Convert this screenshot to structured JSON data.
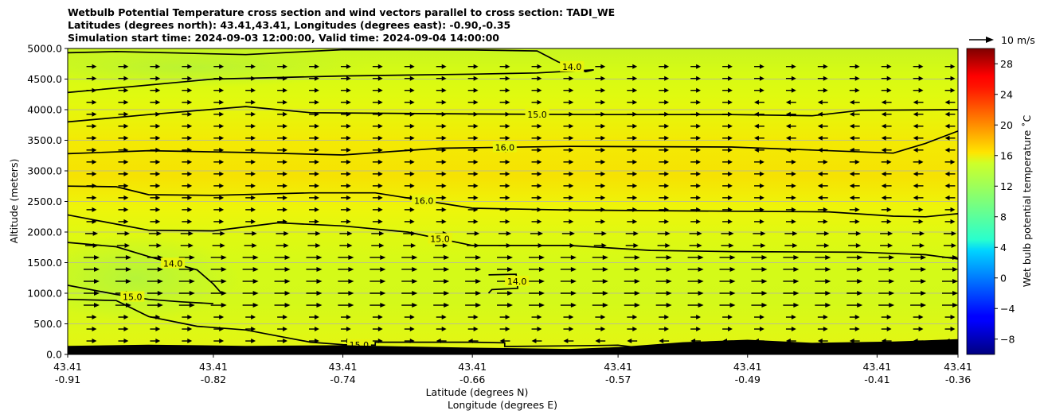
{
  "chart_data": {
    "type": "heatmap",
    "title_lines": [
      "Wetbulb Potential Temperature cross section and wind vectors parallel to cross section: TADI_WE",
      "Latitudes (degrees north): 43.41,43.41, Longitudes (degrees east): -0.90,-0.35",
      "Simulation start time: 2024-09-03 12:00:00, Valid time: 2024-09-04 14:00:00"
    ],
    "ylabel": "Altitude (meters)",
    "xlabel_lat": "Latitude (degrees N)",
    "xlabel_lon": "Longitude (degrees E)",
    "ylim": [
      0,
      5000
    ],
    "y_ticks": [
      "0.0",
      "500.0",
      "1000.0",
      "1500.0",
      "2000.0",
      "2500.0",
      "3000.0",
      "3500.0",
      "4000.0",
      "4500.0",
      "5000.0"
    ],
    "y_tick_values": [
      0,
      500,
      1000,
      1500,
      2000,
      2500,
      3000,
      3500,
      4000,
      4500,
      5000
    ],
    "xlim": [
      -0.91,
      -0.36
    ],
    "x_tick_lon_values": [
      -0.91,
      -0.82,
      -0.74,
      -0.66,
      -0.57,
      -0.49,
      -0.41,
      -0.36
    ],
    "x_tick_lat": [
      "43.41",
      "43.41",
      "43.41",
      "43.41",
      "43.41",
      "43.41",
      "43.41",
      "43.41"
    ],
    "x_tick_lon": [
      "-0.91",
      "-0.82",
      "-0.74",
      "-0.66",
      "-0.57",
      "-0.49",
      "-0.41",
      "-0.36"
    ],
    "grid": "horizontal",
    "colorbar": {
      "label": "Wet bulb potential temperature ˚C",
      "range": [
        -10,
        30
      ],
      "ticks": [
        "28",
        "24",
        "20",
        "16",
        "12",
        "8",
        "4",
        "0",
        "−4",
        "−8"
      ],
      "tick_values": [
        28,
        24,
        20,
        16,
        12,
        8,
        4,
        0,
        -4,
        -8
      ],
      "colormap": "jet"
    },
    "quiver_key": "10 m/s",
    "contours": [
      {
        "level": 14.0,
        "label": "14.0",
        "points": [
          [
            -0.91,
            4930
          ],
          [
            -0.88,
            4950
          ],
          [
            -0.8,
            4900
          ],
          [
            -0.74,
            4980
          ],
          [
            -0.66,
            4975
          ],
          [
            -0.62,
            4960
          ],
          [
            -0.607,
            4780
          ],
          [
            -0.59,
            4620
          ],
          [
            -0.585,
            4650
          ],
          [
            -0.62,
            4600
          ],
          [
            -0.66,
            4580
          ],
          [
            -0.74,
            4550
          ],
          [
            -0.82,
            4500
          ],
          [
            -0.91,
            4280
          ]
        ]
      },
      {
        "level": 15.0,
        "label": "15.0",
        "points": [
          [
            -0.91,
            3800
          ],
          [
            -0.86,
            3920
          ],
          [
            -0.8,
            4050
          ],
          [
            -0.76,
            3950
          ],
          [
            -0.66,
            3930
          ],
          [
            -0.58,
            3920
          ],
          [
            -0.5,
            3920
          ],
          [
            -0.45,
            3900
          ],
          [
            -0.42,
            3990
          ],
          [
            -0.36,
            4000
          ]
        ]
      },
      {
        "level": 16.0,
        "label": "16.0",
        "points": [
          [
            -0.91,
            3280
          ],
          [
            -0.86,
            3330
          ],
          [
            -0.8,
            3300
          ],
          [
            -0.74,
            3260
          ],
          [
            -0.68,
            3370
          ],
          [
            -0.6,
            3400
          ],
          [
            -0.5,
            3390
          ],
          [
            -0.45,
            3340
          ],
          [
            -0.4,
            3290
          ],
          [
            -0.38,
            3450
          ],
          [
            -0.36,
            3650
          ]
        ]
      },
      {
        "level": 16.0,
        "label": "16.0",
        "points": [
          [
            -0.91,
            2750
          ],
          [
            -0.88,
            2740
          ],
          [
            -0.86,
            2610
          ],
          [
            -0.82,
            2600
          ],
          [
            -0.76,
            2640
          ],
          [
            -0.72,
            2640
          ],
          [
            -0.66,
            2390
          ],
          [
            -0.6,
            2360
          ],
          [
            -0.5,
            2340
          ],
          [
            -0.44,
            2330
          ],
          [
            -0.4,
            2260
          ],
          [
            -0.38,
            2250
          ],
          [
            -0.36,
            2300
          ]
        ]
      },
      {
        "level": 15.0,
        "label": "15.0",
        "points": [
          [
            -0.91,
            2280
          ],
          [
            -0.88,
            2130
          ],
          [
            -0.86,
            2030
          ],
          [
            -0.82,
            2020
          ],
          [
            -0.78,
            2150
          ],
          [
            -0.74,
            2100
          ],
          [
            -0.7,
            2000
          ],
          [
            -0.66,
            1780
          ],
          [
            -0.6,
            1780
          ],
          [
            -0.55,
            1700
          ],
          [
            -0.5,
            1680
          ],
          [
            -0.42,
            1670
          ],
          [
            -0.38,
            1630
          ],
          [
            -0.36,
            1560
          ]
        ]
      },
      {
        "level": 14.0,
        "label": "14.0",
        "points": [
          [
            -0.91,
            1830
          ],
          [
            -0.88,
            1760
          ],
          [
            -0.86,
            1600
          ],
          [
            -0.83,
            1380
          ],
          [
            -0.82,
            1150
          ],
          [
            -0.815,
            1000
          ]
        ]
      },
      {
        "level": 14.0,
        "label": "14.0",
        "points": [
          [
            -0.65,
            1300
          ],
          [
            -0.633,
            1310
          ],
          [
            -0.632,
            1080
          ],
          [
            -0.648,
            1060
          ],
          [
            -0.65,
            1000
          ]
        ]
      },
      {
        "level": 15.0,
        "label": "15.0",
        "points": [
          [
            -0.91,
            1130
          ],
          [
            -0.88,
            980
          ],
          [
            -0.86,
            900
          ],
          [
            -0.84,
            860
          ],
          [
            -0.82,
            830
          ]
        ]
      },
      {
        "level": 15.0,
        "label": "15.0",
        "points": [
          [
            -0.91,
            900
          ],
          [
            -0.88,
            880
          ],
          [
            -0.86,
            620
          ],
          [
            -0.83,
            460
          ],
          [
            -0.8,
            400
          ],
          [
            -0.78,
            300
          ],
          [
            -0.76,
            200
          ],
          [
            -0.74,
            160
          ],
          [
            -0.72,
            150
          ],
          [
            -0.72,
            200
          ],
          [
            -0.66,
            200
          ],
          [
            -0.64,
            190
          ],
          [
            -0.64,
            130
          ],
          [
            -0.6,
            140
          ],
          [
            -0.57,
            150
          ],
          [
            -0.56,
            120
          ]
        ]
      }
    ]
  }
}
